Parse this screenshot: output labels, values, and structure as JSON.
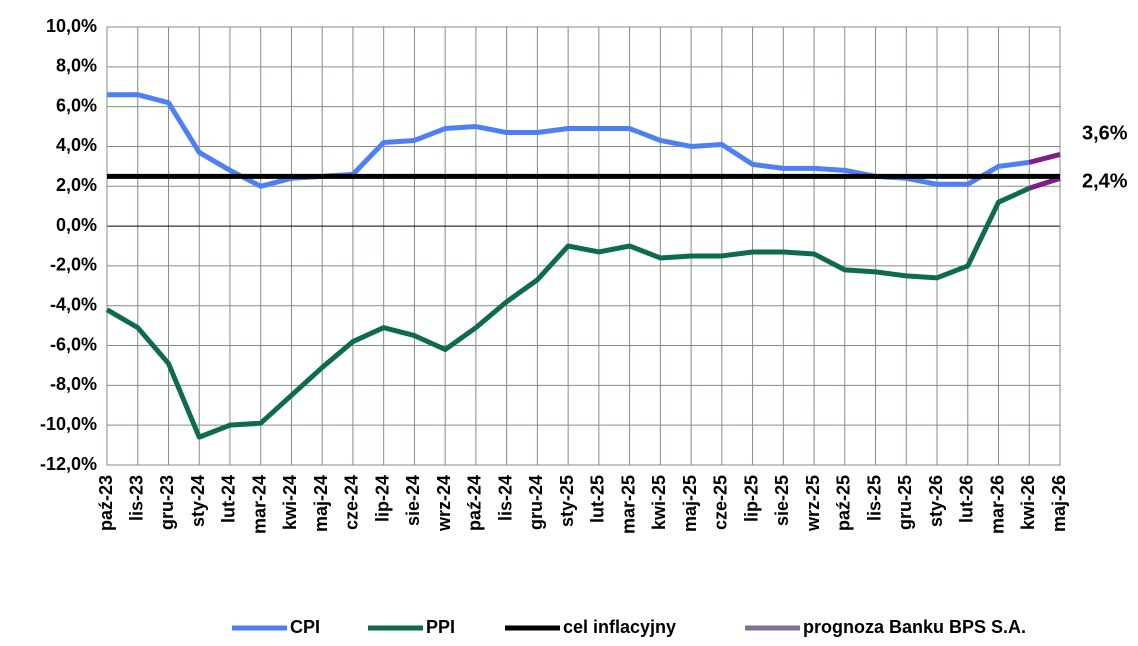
{
  "chart_data": {
    "type": "line",
    "categories": [
      "paź-23",
      "lis-23",
      "gru-23",
      "sty-24",
      "lut-24",
      "mar-24",
      "kwi-24",
      "maj-24",
      "cze-24",
      "lip-24",
      "sie-24",
      "wrz-24",
      "paź-24",
      "lis-24",
      "gru-24",
      "sty-25",
      "lut-25",
      "mar-25",
      "kwi-25",
      "maj-25",
      "cze-25",
      "lip-25",
      "sie-25",
      "wrz-25",
      "paź-25",
      "lis-25",
      "gru-25",
      "sty-26",
      "lut-26",
      "mar-26",
      "kwi-26",
      "maj-26"
    ],
    "series": [
      {
        "name": "CPI",
        "color": "#4f7ff5",
        "values": [
          6.6,
          6.6,
          6.2,
          3.7,
          2.8,
          2.0,
          2.4,
          2.5,
          2.6,
          4.2,
          4.3,
          4.9,
          5.0,
          4.7,
          4.7,
          4.9,
          4.9,
          4.9,
          4.3,
          4.0,
          4.1,
          3.1,
          2.9,
          2.9,
          2.8,
          2.5,
          2.4,
          2.1,
          2.1,
          3.0,
          3.2,
          3.6
        ],
        "value_labels": [
          null,
          null,
          null,
          null,
          null,
          null,
          null,
          null,
          null,
          null,
          null,
          null,
          null,
          null,
          null,
          null,
          null,
          null,
          null,
          null,
          null,
          null,
          null,
          null,
          null,
          null,
          null,
          null,
          null,
          null,
          null,
          "3,6%"
        ]
      },
      {
        "name": "PPI",
        "color": "#0e6b52",
        "label_color": "#1a8c78",
        "values": [
          -4.2,
          -5.1,
          -6.9,
          -10.6,
          -10.0,
          -9.9,
          -8.5,
          -7.1,
          -5.8,
          -5.1,
          -5.5,
          -6.2,
          -5.1,
          -3.8,
          -2.7,
          -1.0,
          -1.3,
          -1.0,
          -1.6,
          -1.5,
          -1.5,
          -1.3,
          -1.3,
          -1.4,
          -2.2,
          -2.3,
          -2.5,
          -2.6,
          -2.0,
          1.2,
          1.9,
          2.4
        ],
        "value_labels": [
          null,
          null,
          null,
          null,
          null,
          null,
          null,
          null,
          null,
          null,
          null,
          null,
          null,
          null,
          null,
          null,
          null,
          null,
          null,
          null,
          null,
          null,
          null,
          null,
          null,
          null,
          null,
          null,
          null,
          null,
          null,
          "2,4%"
        ]
      },
      {
        "name": "cel inflacyjny",
        "color": "#000000",
        "values": [
          2.5,
          2.5,
          2.5,
          2.5,
          2.5,
          2.5,
          2.5,
          2.5,
          2.5,
          2.5,
          2.5,
          2.5,
          2.5,
          2.5,
          2.5,
          2.5,
          2.5,
          2.5,
          2.5,
          2.5,
          2.5,
          2.5,
          2.5,
          2.5,
          2.5,
          2.5,
          2.5,
          2.5,
          2.5,
          2.5,
          2.5,
          2.5
        ]
      },
      {
        "name": "prognoza Banku BPS S.A.",
        "color": "#7d1d86",
        "legend_color": "#7f7090"
      }
    ],
    "forecast_start": 30,
    "ylim": [
      -12,
      10
    ],
    "yticks": [
      {
        "value": -12,
        "label": "-12,0%"
      },
      {
        "value": -10,
        "label": "-10,0%"
      },
      {
        "value": -8,
        "label": "-8,0%"
      },
      {
        "value": -6,
        "label": "-6,0%"
      },
      {
        "value": -4,
        "label": "-4,0%"
      },
      {
        "value": -2,
        "label": "-2,0%"
      },
      {
        "value": 0,
        "label": "0,0%"
      },
      {
        "value": 2,
        "label": "2,0%"
      },
      {
        "value": 4,
        "label": "4,0%"
      },
      {
        "value": 6,
        "label": "6,0%"
      },
      {
        "value": 8,
        "label": "8,0%"
      },
      {
        "value": 10,
        "label": "10,0%"
      }
    ],
    "grid": true,
    "legend": "bottom"
  }
}
